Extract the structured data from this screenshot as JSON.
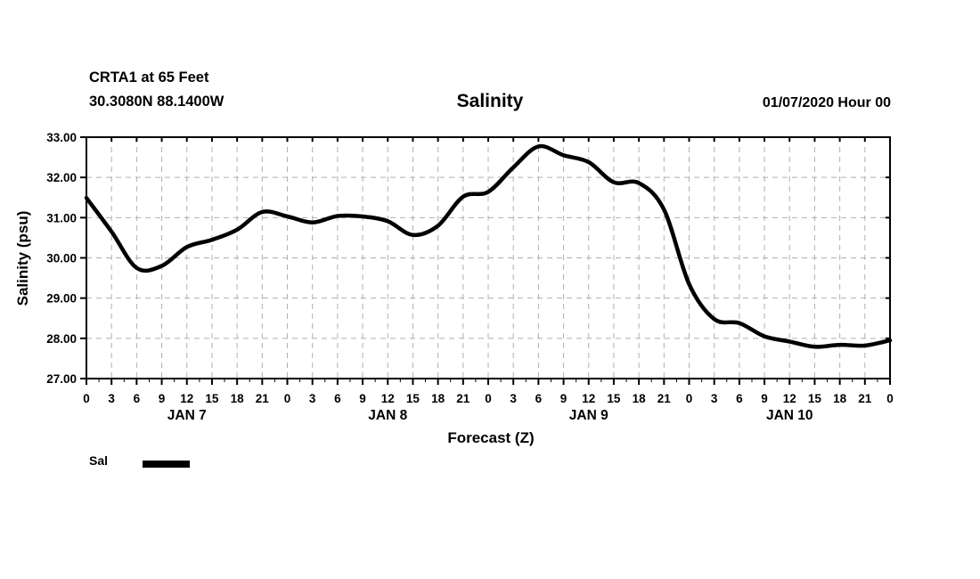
{
  "header": {
    "station": "CRTA1 at 65 Feet",
    "coordinates": "30.3080N 88.1400W",
    "title": "Salinity",
    "date": "01/07/2020 Hour 00"
  },
  "legend": {
    "label": "Sal",
    "swatch_color": "#000000"
  },
  "chart_data": {
    "type": "line",
    "title": "Salinity",
    "xlabel": "Forecast (Z)",
    "ylabel": "Salinity (psu)",
    "xlim": [
      0,
      96
    ],
    "ylim": [
      27,
      33
    ],
    "grid": true,
    "legend_position": "bottom-left",
    "line_color": "#000000",
    "grid_color": "#b0b0b0",
    "ytick_values": [
      33,
      32,
      31,
      30,
      29,
      28,
      27
    ],
    "ytick_labels": [
      "33.00",
      "32.00",
      "31.00",
      "30.00",
      "29.00",
      "28.00",
      "27.00"
    ],
    "xtick_hours": [
      0,
      3,
      6,
      9,
      12,
      15,
      18,
      21,
      24,
      27,
      30,
      33,
      36,
      39,
      42,
      45,
      48,
      51,
      54,
      57,
      60,
      63,
      66,
      69,
      72,
      75,
      78,
      81,
      84,
      87,
      90,
      93,
      96
    ],
    "xtick_labels": [
      "0",
      "3",
      "6",
      "9",
      "12",
      "15",
      "18",
      "21",
      "0",
      "3",
      "6",
      "9",
      "12",
      "15",
      "18",
      "21",
      "0",
      "3",
      "6",
      "9",
      "12",
      "15",
      "18",
      "21",
      "0",
      "3",
      "6",
      "9",
      "12",
      "15",
      "18",
      "21",
      "0"
    ],
    "minor_tick_interval_hours": 1.5,
    "day_labels": [
      {
        "hour": 12,
        "label": "JAN 7"
      },
      {
        "hour": 36,
        "label": "JAN 8"
      },
      {
        "hour": 60,
        "label": "JAN 9"
      },
      {
        "hour": 84,
        "label": "JAN 10"
      }
    ],
    "series": [
      {
        "name": "Sal",
        "x": [
          0,
          3,
          6,
          9,
          12,
          15,
          18,
          21,
          24,
          27,
          30,
          33,
          36,
          39,
          42,
          45,
          48,
          51,
          54,
          57,
          60,
          63,
          66,
          69,
          72,
          75,
          78,
          81,
          84,
          87,
          90,
          93,
          96
        ],
        "values": [
          31.49,
          30.65,
          29.75,
          29.8,
          30.27,
          30.45,
          30.7,
          31.14,
          31.03,
          30.88,
          31.04,
          31.03,
          30.91,
          30.57,
          30.8,
          31.52,
          31.64,
          32.25,
          32.77,
          32.55,
          32.38,
          31.88,
          31.86,
          31.2,
          29.35,
          28.48,
          28.38,
          28.05,
          27.92,
          27.79,
          27.84,
          27.82,
          27.95
        ]
      }
    ]
  }
}
